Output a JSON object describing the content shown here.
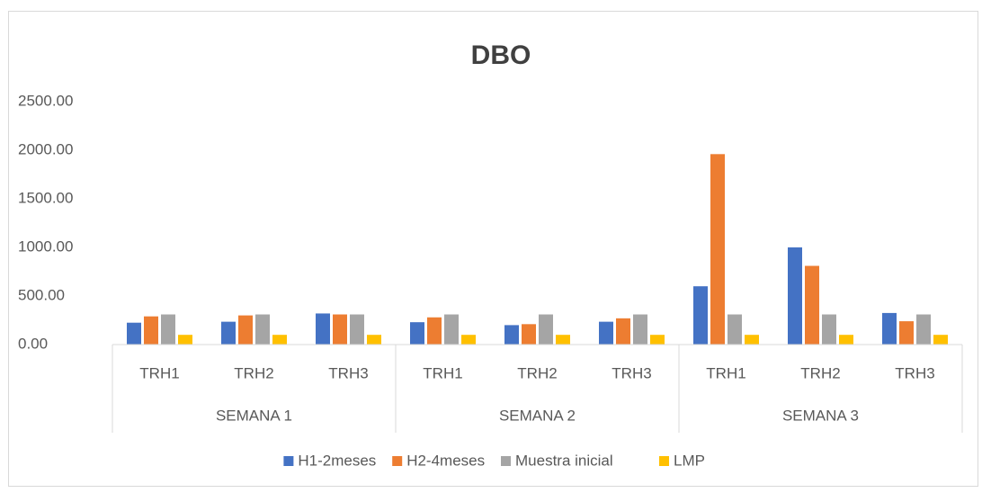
{
  "chart_data": {
    "type": "bar",
    "title": "DBO",
    "categories": [
      "TRH1",
      "TRH2",
      "TRH3",
      "TRH1",
      "TRH2",
      "TRH3",
      "TRH1",
      "TRH2",
      "TRH3"
    ],
    "groups": [
      "SEMANA 1",
      "SEMANA 2",
      "SEMANA 3"
    ],
    "series": [
      {
        "name": "H1-2meses",
        "color": "#4472c4",
        "values": [
          225,
          235,
          320,
          230,
          200,
          235,
          600,
          1000,
          325
        ]
      },
      {
        "name": "H2-4meses",
        "color": "#ed7d31",
        "values": [
          290,
          300,
          310,
          280,
          210,
          270,
          1960,
          810,
          240
        ]
      },
      {
        "name": "Muestra inicial",
        "color": "#a5a5a5",
        "values": [
          310,
          310,
          310,
          310,
          310,
          310,
          310,
          310,
          310
        ]
      },
      {
        "name": "LMP",
        "color": "#ffc000",
        "values": [
          100,
          100,
          100,
          100,
          100,
          100,
          100,
          100,
          100
        ]
      }
    ],
    "ylim": [
      0,
      2500
    ],
    "yticks": [
      {
        "value": 0,
        "label": "0.00"
      },
      {
        "value": 500,
        "label": "500.00"
      },
      {
        "value": 1000,
        "label": "1000.00"
      },
      {
        "value": 1500,
        "label": "1500.00"
      },
      {
        "value": 2000,
        "label": "2000.00"
      },
      {
        "value": 2500,
        "label": "2500.00"
      }
    ],
    "grid": false,
    "legend": "bottom"
  }
}
